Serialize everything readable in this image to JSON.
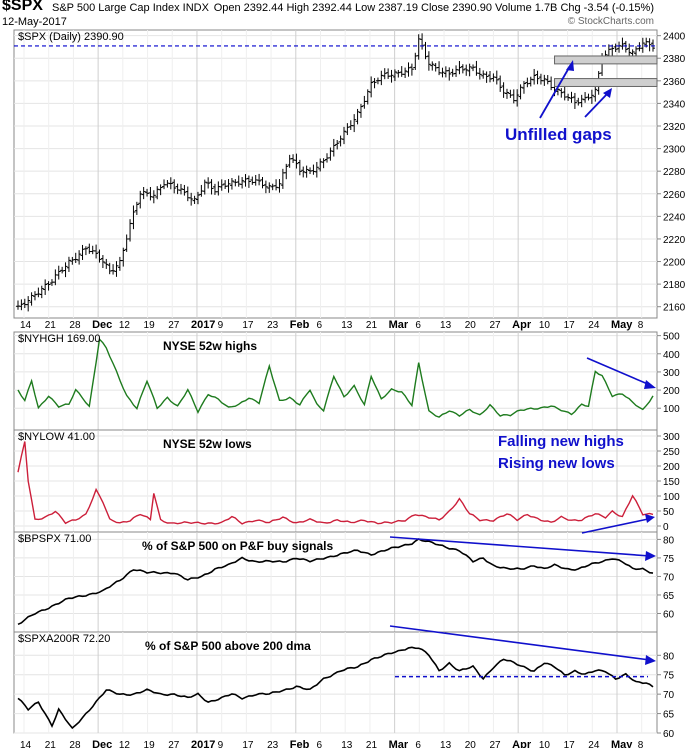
{
  "header": {
    "symbol": "$SPX",
    "name": "S&P 500 Large Cap Index INDX",
    "date": "12-May-2017",
    "quote": "Open 2392.44  High 2392.44  Low 2387.19  Close 2390.90  Volume 1.7B  Chg -3.54 (-0.15%)",
    "watermark": "© StockCharts.com"
  },
  "chart_data": [
    {
      "type": "bar",
      "title": "$SPX (Daily) 2390.90",
      "ylim": [
        2150,
        2405
      ],
      "yticks": [
        2160,
        2180,
        2200,
        2220,
        2240,
        2260,
        2280,
        2300,
        2320,
        2340,
        2360,
        2380,
        2400
      ],
      "anchors": [
        [
          0,
          2158
        ],
        [
          5,
          2172
        ],
        [
          10,
          2182
        ],
        [
          15,
          2200
        ],
        [
          20,
          2212
        ],
        [
          25,
          2200
        ],
        [
          27,
          2192
        ],
        [
          30,
          2200
        ],
        [
          33,
          2232
        ],
        [
          36,
          2260
        ],
        [
          40,
          2260
        ],
        [
          43,
          2270
        ],
        [
          46,
          2265
        ],
        [
          48,
          2262
        ],
        [
          52,
          2255
        ],
        [
          55,
          2270
        ],
        [
          58,
          2262
        ],
        [
          62,
          2270
        ],
        [
          66,
          2272
        ],
        [
          70,
          2270
        ],
        [
          74,
          2266
        ],
        [
          77,
          2270
        ],
        [
          80,
          2292
        ],
        [
          83,
          2280
        ],
        [
          86,
          2280
        ],
        [
          90,
          2290
        ],
        [
          93,
          2300
        ],
        [
          97,
          2318
        ],
        [
          100,
          2332
        ],
        [
          104,
          2356
        ],
        [
          108,
          2365
        ],
        [
          112,
          2368
        ],
        [
          116,
          2370
        ],
        [
          118,
          2395
        ],
        [
          121,
          2376
        ],
        [
          124,
          2370
        ],
        [
          127,
          2366
        ],
        [
          131,
          2370
        ],
        [
          134,
          2372
        ],
        [
          137,
          2365
        ],
        [
          140,
          2362
        ],
        [
          143,
          2350
        ],
        [
          146,
          2345
        ],
        [
          149,
          2358
        ],
        [
          152,
          2362
        ],
        [
          155,
          2360
        ],
        [
          158,
          2354
        ],
        [
          161,
          2348
        ],
        [
          164,
          2340
        ],
        [
          167,
          2343
        ],
        [
          170,
          2352
        ],
        [
          172,
          2382
        ],
        [
          175,
          2388
        ],
        [
          178,
          2390
        ],
        [
          181,
          2385
        ],
        [
          184,
          2395
        ],
        [
          187,
          2390
        ]
      ],
      "annotations": [
        "Unfilled gaps"
      ],
      "gaps": [
        [
          2375,
          2382
        ],
        [
          2355,
          2362
        ]
      ]
    },
    {
      "type": "line",
      "title": "$NYHGH 169.00",
      "label": "NYSE 52w highs",
      "ylim": [
        -20,
        520
      ],
      "yticks": [
        100,
        200,
        300,
        400,
        500
      ],
      "color": "#1e7b1e",
      "anchors": [
        [
          0,
          200
        ],
        [
          2,
          140
        ],
        [
          4,
          250
        ],
        [
          6,
          100
        ],
        [
          9,
          170
        ],
        [
          12,
          110
        ],
        [
          15,
          120
        ],
        [
          17,
          200
        ],
        [
          19,
          160
        ],
        [
          21,
          110
        ],
        [
          24,
          480
        ],
        [
          26,
          430
        ],
        [
          29,
          300
        ],
        [
          32,
          170
        ],
        [
          35,
          100
        ],
        [
          38,
          250
        ],
        [
          41,
          100
        ],
        [
          44,
          160
        ],
        [
          47,
          110
        ],
        [
          50,
          200
        ],
        [
          53,
          80
        ],
        [
          56,
          180
        ],
        [
          59,
          150
        ],
        [
          62,
          100
        ],
        [
          65,
          120
        ],
        [
          68,
          160
        ],
        [
          71,
          130
        ],
        [
          74,
          330
        ],
        [
          77,
          140
        ],
        [
          80,
          160
        ],
        [
          83,
          120
        ],
        [
          86,
          200
        ],
        [
          88,
          120
        ],
        [
          90,
          90
        ],
        [
          93,
          280
        ],
        [
          96,
          160
        ],
        [
          99,
          220
        ],
        [
          102,
          120
        ],
        [
          104,
          280
        ],
        [
          107,
          150
        ],
        [
          110,
          200
        ],
        [
          113,
          190
        ],
        [
          116,
          120
        ],
        [
          118,
          350
        ],
        [
          121,
          80
        ],
        [
          124,
          50
        ],
        [
          127,
          90
        ],
        [
          130,
          60
        ],
        [
          133,
          90
        ],
        [
          136,
          60
        ],
        [
          139,
          120
        ],
        [
          142,
          60
        ],
        [
          145,
          60
        ],
        [
          148,
          90
        ],
        [
          151,
          100
        ],
        [
          154,
          100
        ],
        [
          157,
          110
        ],
        [
          160,
          90
        ],
        [
          163,
          70
        ],
        [
          166,
          120
        ],
        [
          168,
          110
        ],
        [
          170,
          300
        ],
        [
          172,
          280
        ],
        [
          175,
          170
        ],
        [
          178,
          180
        ],
        [
          181,
          130
        ],
        [
          184,
          90
        ],
        [
          187,
          169
        ]
      ],
      "arrow_label": "Falling new highs"
    },
    {
      "type": "line",
      "title": "$NYLOW 41.00",
      "label": "NYSE 52w lows",
      "ylim": [
        -20,
        320
      ],
      "yticks": [
        0,
        50,
        100,
        150,
        200,
        250,
        300
      ],
      "color": "#cc1f3a",
      "anchors": [
        [
          0,
          180
        ],
        [
          2,
          280
        ],
        [
          3,
          150
        ],
        [
          5,
          20
        ],
        [
          8,
          30
        ],
        [
          11,
          50
        ],
        [
          14,
          10
        ],
        [
          17,
          20
        ],
        [
          20,
          40
        ],
        [
          23,
          120
        ],
        [
          25,
          80
        ],
        [
          27,
          20
        ],
        [
          30,
          10
        ],
        [
          33,
          20
        ],
        [
          36,
          40
        ],
        [
          39,
          20
        ],
        [
          40,
          110
        ],
        [
          42,
          20
        ],
        [
          45,
          10
        ],
        [
          50,
          10
        ],
        [
          55,
          10
        ],
        [
          60,
          10
        ],
        [
          63,
          30
        ],
        [
          66,
          10
        ],
        [
          70,
          20
        ],
        [
          74,
          10
        ],
        [
          78,
          30
        ],
        [
          82,
          10
        ],
        [
          86,
          20
        ],
        [
          90,
          10
        ],
        [
          94,
          20
        ],
        [
          98,
          10
        ],
        [
          102,
          20
        ],
        [
          106,
          10
        ],
        [
          110,
          10
        ],
        [
          114,
          20
        ],
        [
          117,
          40
        ],
        [
          120,
          30
        ],
        [
          124,
          20
        ],
        [
          127,
          50
        ],
        [
          130,
          90
        ],
        [
          133,
          40
        ],
        [
          136,
          20
        ],
        [
          140,
          20
        ],
        [
          144,
          40
        ],
        [
          147,
          20
        ],
        [
          150,
          40
        ],
        [
          154,
          20
        ],
        [
          157,
          10
        ],
        [
          160,
          30
        ],
        [
          163,
          20
        ],
        [
          166,
          20
        ],
        [
          170,
          40
        ],
        [
          173,
          30
        ],
        [
          175,
          50
        ],
        [
          178,
          30
        ],
        [
          181,
          100
        ],
        [
          184,
          40
        ],
        [
          187,
          41
        ]
      ],
      "arrow_label": "Rising new lows"
    },
    {
      "type": "line",
      "title": "$BPSPX 71.00",
      "label": "% of S&P 500 on P&F buy signals",
      "ylim": [
        55,
        82
      ],
      "yticks": [
        60,
        65,
        70,
        75,
        80
      ],
      "color": "#000000",
      "anchors": [
        [
          0,
          57
        ],
        [
          5,
          60
        ],
        [
          10,
          62
        ],
        [
          15,
          64
        ],
        [
          20,
          65
        ],
        [
          25,
          66
        ],
        [
          30,
          69
        ],
        [
          34,
          72
        ],
        [
          38,
          71
        ],
        [
          42,
          71
        ],
        [
          46,
          71
        ],
        [
          50,
          69
        ],
        [
          54,
          70
        ],
        [
          58,
          72
        ],
        [
          62,
          73
        ],
        [
          66,
          75
        ],
        [
          70,
          74
        ],
        [
          74,
          74
        ],
        [
          78,
          74
        ],
        [
          82,
          75
        ],
        [
          86,
          74
        ],
        [
          90,
          75
        ],
        [
          95,
          76
        ],
        [
          100,
          77
        ],
        [
          104,
          76
        ],
        [
          108,
          77
        ],
        [
          112,
          78
        ],
        [
          116,
          79
        ],
        [
          118,
          80
        ],
        [
          122,
          79
        ],
        [
          126,
          78
        ],
        [
          130,
          77
        ],
        [
          134,
          74
        ],
        [
          137,
          75
        ],
        [
          140,
          73
        ],
        [
          144,
          72
        ],
        [
          148,
          72
        ],
        [
          152,
          73
        ],
        [
          155,
          72
        ],
        [
          158,
          73
        ],
        [
          162,
          72
        ],
        [
          165,
          72
        ],
        [
          168,
          73
        ],
        [
          172,
          74
        ],
        [
          175,
          75
        ],
        [
          178,
          74
        ],
        [
          181,
          72
        ],
        [
          184,
          72
        ],
        [
          187,
          71
        ]
      ]
    },
    {
      "type": "line",
      "title": "$SPXA200R 72.20",
      "label": "% of S&P 500 above 200 dma",
      "ylim": [
        60,
        86
      ],
      "yticks": [
        60,
        65,
        70,
        75,
        80
      ],
      "color": "#000000",
      "anchors": [
        [
          0,
          69
        ],
        [
          3,
          66
        ],
        [
          6,
          68
        ],
        [
          10,
          62
        ],
        [
          12,
          66
        ],
        [
          16,
          61
        ],
        [
          20,
          65
        ],
        [
          24,
          69
        ],
        [
          26,
          71
        ],
        [
          30,
          70
        ],
        [
          34,
          70
        ],
        [
          38,
          71
        ],
        [
          42,
          70
        ],
        [
          46,
          70
        ],
        [
          50,
          69
        ],
        [
          53,
          70
        ],
        [
          56,
          68
        ],
        [
          60,
          69
        ],
        [
          63,
          70
        ],
        [
          66,
          69
        ],
        [
          70,
          70
        ],
        [
          74,
          70
        ],
        [
          78,
          71
        ],
        [
          82,
          72
        ],
        [
          86,
          71
        ],
        [
          90,
          74
        ],
        [
          95,
          76
        ],
        [
          100,
          77
        ],
        [
          104,
          79
        ],
        [
          108,
          80
        ],
        [
          112,
          81
        ],
        [
          115,
          82
        ],
        [
          118,
          82
        ],
        [
          121,
          80
        ],
        [
          124,
          76
        ],
        [
          127,
          78
        ],
        [
          130,
          76
        ],
        [
          134,
          77
        ],
        [
          137,
          74
        ],
        [
          140,
          77
        ],
        [
          143,
          79
        ],
        [
          146,
          78
        ],
        [
          149,
          77
        ],
        [
          152,
          76
        ],
        [
          155,
          78
        ],
        [
          158,
          77
        ],
        [
          161,
          75
        ],
        [
          164,
          76
        ],
        [
          167,
          75
        ],
        [
          170,
          76
        ],
        [
          173,
          76
        ],
        [
          176,
          74
        ],
        [
          179,
          75
        ],
        [
          182,
          73
        ],
        [
          185,
          73
        ],
        [
          187,
          72
        ]
      ],
      "dashed_level": 74.5
    }
  ],
  "date_axis": [
    "14",
    "21",
    "28",
    "Dec",
    "12",
    "19",
    "27",
    "2017",
    "9",
    "17",
    "23",
    "Feb",
    "6",
    "13",
    "21",
    "Mar",
    "6",
    "13",
    "20",
    "27",
    "Apr",
    "10",
    "17",
    "24",
    "May",
    "8"
  ]
}
